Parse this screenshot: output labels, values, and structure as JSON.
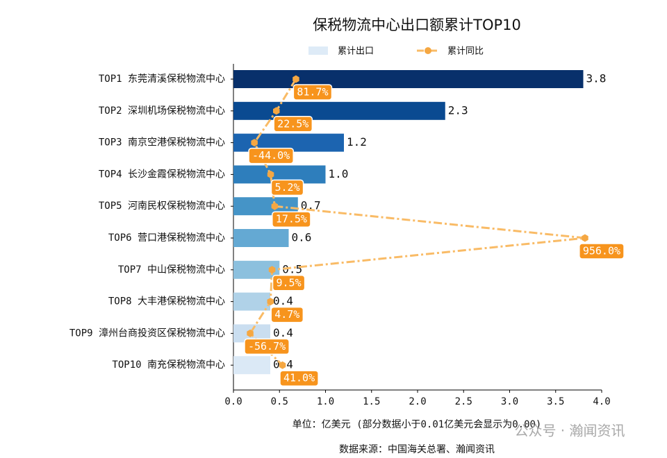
{
  "chart_data": {
    "type": "bar_line",
    "orientation": "horizontal",
    "title": "保税物流中心出口额累计TOP10",
    "xlabel": "单位：亿美元  (部分数据小于0.01亿美元会显示为0.00)",
    "source": "数据来源：中国海关总署、瀚闻资讯",
    "watermark": "公众号 · 瀚闻资讯",
    "categories": [
      "TOP1 东莞清溪保税物流中心",
      "TOP2 深圳机场保税物流中心",
      "TOP3 南京空港保税物流中心",
      "TOP4 长沙金霞保税物流中心",
      "TOP5 河南民权保税物流中心",
      "TOP6 营口港保税物流中心",
      "TOP7 中山保税物流中心",
      "TOP8 大丰港保税物流中心",
      "TOP9 漳州台商投资区保税物流中心",
      "TOP10 南充保税物流中心"
    ],
    "series": [
      {
        "name": "累计出口",
        "color": "#deebf7",
        "colors": [
          "#08306b",
          "#0a4a91",
          "#1c64b0",
          "#2e7ebc",
          "#4594c7",
          "#64a9d3",
          "#8cc0de",
          "#b0d2e8",
          "#cadef0",
          "#dbe9f6"
        ],
        "values": [
          3.8,
          2.3,
          1.2,
          1.0,
          0.7,
          0.6,
          0.5,
          0.4,
          0.4,
          0.4
        ],
        "value_labels": [
          "3.8",
          "2.3",
          "1.2",
          "1.0",
          "0.7",
          "0.6",
          "0.5",
          "0.4",
          "0.4",
          "0.4"
        ]
      },
      {
        "name": "累计同比",
        "color": "#f9bb66",
        "marker_color": "#f5a742",
        "label_color": "#f7941d",
        "axis": "x2",
        "values": [
          81.7,
          22.5,
          -44.0,
          5.2,
          17.5,
          956.0,
          9.5,
          4.7,
          -56.7,
          41.0
        ],
        "value_labels": [
          "81.7%",
          "22.5%",
          "-44.0%",
          "5.2%",
          "17.5%",
          "956.0%",
          "9.5%",
          "4.7%",
          "-56.7%",
          "41.0%"
        ]
      }
    ],
    "xlim": [
      0,
      4
    ],
    "xticks": [
      {
        "value": 0,
        "label": "0.0"
      },
      0.5,
      {
        "value": 1,
        "label": "1.0"
      },
      1.5,
      {
        "value": 2,
        "label": "2.0"
      },
      2.5,
      {
        "value": 3,
        "label": "3.0"
      },
      3.5,
      {
        "value": 4,
        "label": "4.0"
      }
    ],
    "x2lim": [
      -107.3,
      1006.6
    ],
    "grid": false,
    "legend": "top"
  }
}
